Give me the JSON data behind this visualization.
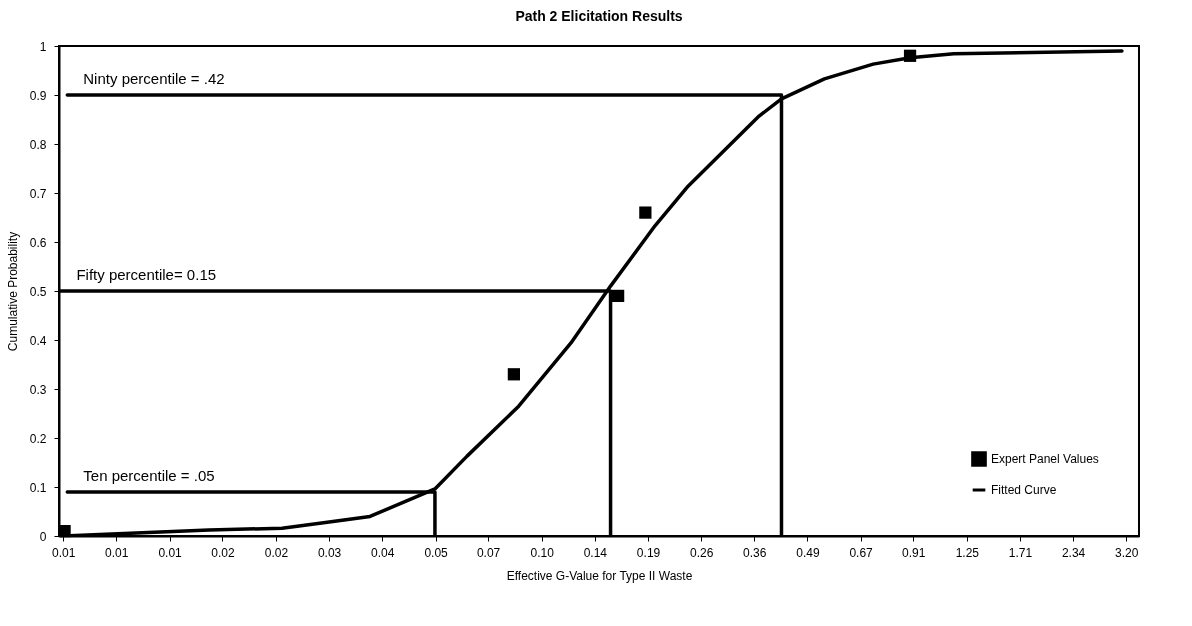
{
  "chart_data": {
    "type": "line",
    "title": "Path 2 Elicitation Results",
    "xlabel": "Effective G-Value for Type II Waste",
    "ylabel": "Cumulative Probability",
    "log": "x",
    "xlim": [
      0.006,
      3.45
    ],
    "ylim": [
      0,
      1
    ],
    "xticks": [
      {
        "value": 0.00615,
        "label": "0.01"
      },
      {
        "value": 0.0084,
        "label": "0.01"
      },
      {
        "value": 0.0115,
        "label": "0.01"
      },
      {
        "value": 0.0157,
        "label": "0.02"
      },
      {
        "value": 0.0215,
        "label": "0.02"
      },
      {
        "value": 0.0294,
        "label": "0.03"
      },
      {
        "value": 0.0402,
        "label": "0.04"
      },
      {
        "value": 0.055,
        "label": "0.05"
      },
      {
        "value": 0.0749,
        "label": "0.07"
      },
      {
        "value": 0.1027,
        "label": "0.10"
      },
      {
        "value": 0.1404,
        "label": "0.14"
      },
      {
        "value": 0.192,
        "label": "0.19"
      },
      {
        "value": 0.2624,
        "label": "0.26"
      },
      {
        "value": 0.3587,
        "label": "0.36"
      },
      {
        "value": 0.4904,
        "label": "0.49"
      },
      {
        "value": 0.6704,
        "label": "0.67"
      },
      {
        "value": 0.914,
        "label": "0.91"
      },
      {
        "value": 1.253,
        "label": "1.25"
      },
      {
        "value": 1.712,
        "label": "1.71"
      },
      {
        "value": 2.341,
        "label": "2.34"
      },
      {
        "value": 3.2,
        "label": "3.20"
      }
    ],
    "yticks": [
      0,
      0.1,
      0.2,
      0.3,
      0.4,
      0.5,
      0.6,
      0.7,
      0.8,
      0.9,
      1
    ],
    "grid": false,
    "legend": "bottom right",
    "line_style": "solid",
    "series": [
      {
        "name": "Expert Panel Values",
        "type": "scatter",
        "marker": "square",
        "color": "#000000",
        "x": [
          0.0062,
          0.0872,
          0.161,
          0.189,
          0.897
        ],
        "values": [
          0.01,
          0.33,
          0.49,
          0.66,
          0.98
        ]
      },
      {
        "name": "Fitted Curve",
        "color": "#000000",
        "x": [
          0.00615,
          0.0145,
          0.0223,
          0.0304,
          0.0374,
          0.0548,
          0.0662,
          0.0897,
          0.122,
          0.154,
          0.2,
          0.243,
          0.369,
          0.421,
          0.542,
          0.722,
          0.897,
          1.16,
          3.12
        ],
        "values": [
          0,
          0.012,
          0.016,
          0.03,
          0.04,
          0.096,
          0.163,
          0.265,
          0.394,
          0.51,
          0.633,
          0.714,
          0.857,
          0.892,
          0.933,
          0.963,
          0.976,
          0.984,
          0.99
        ]
      },
      {
        "color": "#000000",
        "x": [
          0.0063,
          0.421,
          0.421
        ],
        "values": [
          0.9,
          0.9,
          0
        ]
      },
      {
        "color": "#000000",
        "x": [
          0.00605,
          0.154,
          0.154
        ],
        "values": [
          0.5,
          0.5,
          0
        ]
      },
      {
        "color": "#000000",
        "x": [
          0.0063,
          0.0548,
          0.0548
        ],
        "values": [
          0.09,
          0.09,
          0
        ]
      }
    ],
    "annotations": [
      "Ninty percentile = .42",
      "Fifty percentile= 0.15",
      "Ten percentile = .05"
    ]
  }
}
